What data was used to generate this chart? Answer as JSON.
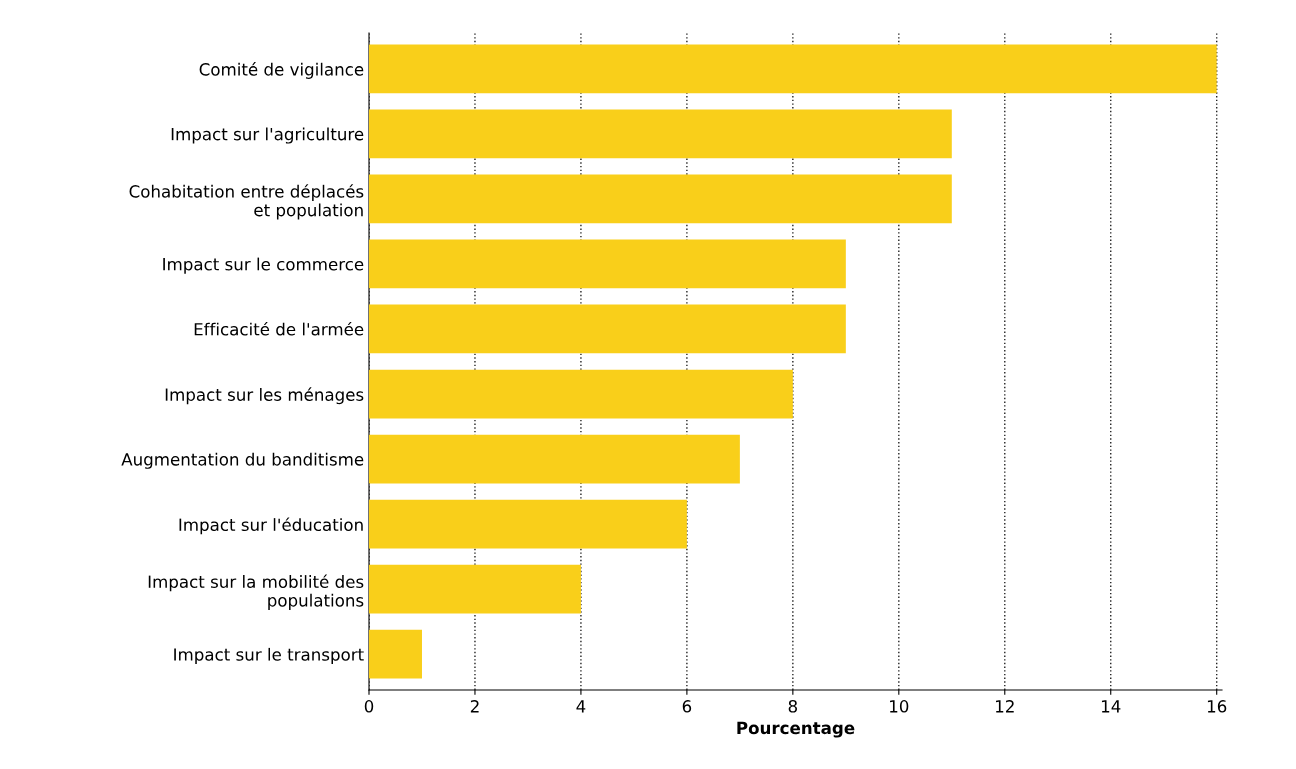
{
  "chart_data": {
    "type": "bar",
    "orientation": "horizontal",
    "xlabel": "Pourcentage",
    "categories": [
      "Comité de vigilance",
      "Impact sur l'agriculture",
      "Cohabitation entre déplacés\net population",
      "Impact sur le commerce",
      "Efficacité de l'armée",
      "Impact sur les ménages",
      "Augmentation du banditisme",
      "Impact sur l'éducation",
      "Impact sur la mobilité des\npopulations",
      "Impact sur le transport"
    ],
    "values": [
      16,
      11,
      11,
      9,
      9,
      8,
      7,
      6,
      4,
      1
    ],
    "color": "#f9cf1a",
    "xlim": [
      0,
      16.1
    ],
    "xticks": [
      0,
      2,
      4,
      6,
      8,
      10,
      12,
      14,
      16
    ],
    "grid": "x"
  }
}
